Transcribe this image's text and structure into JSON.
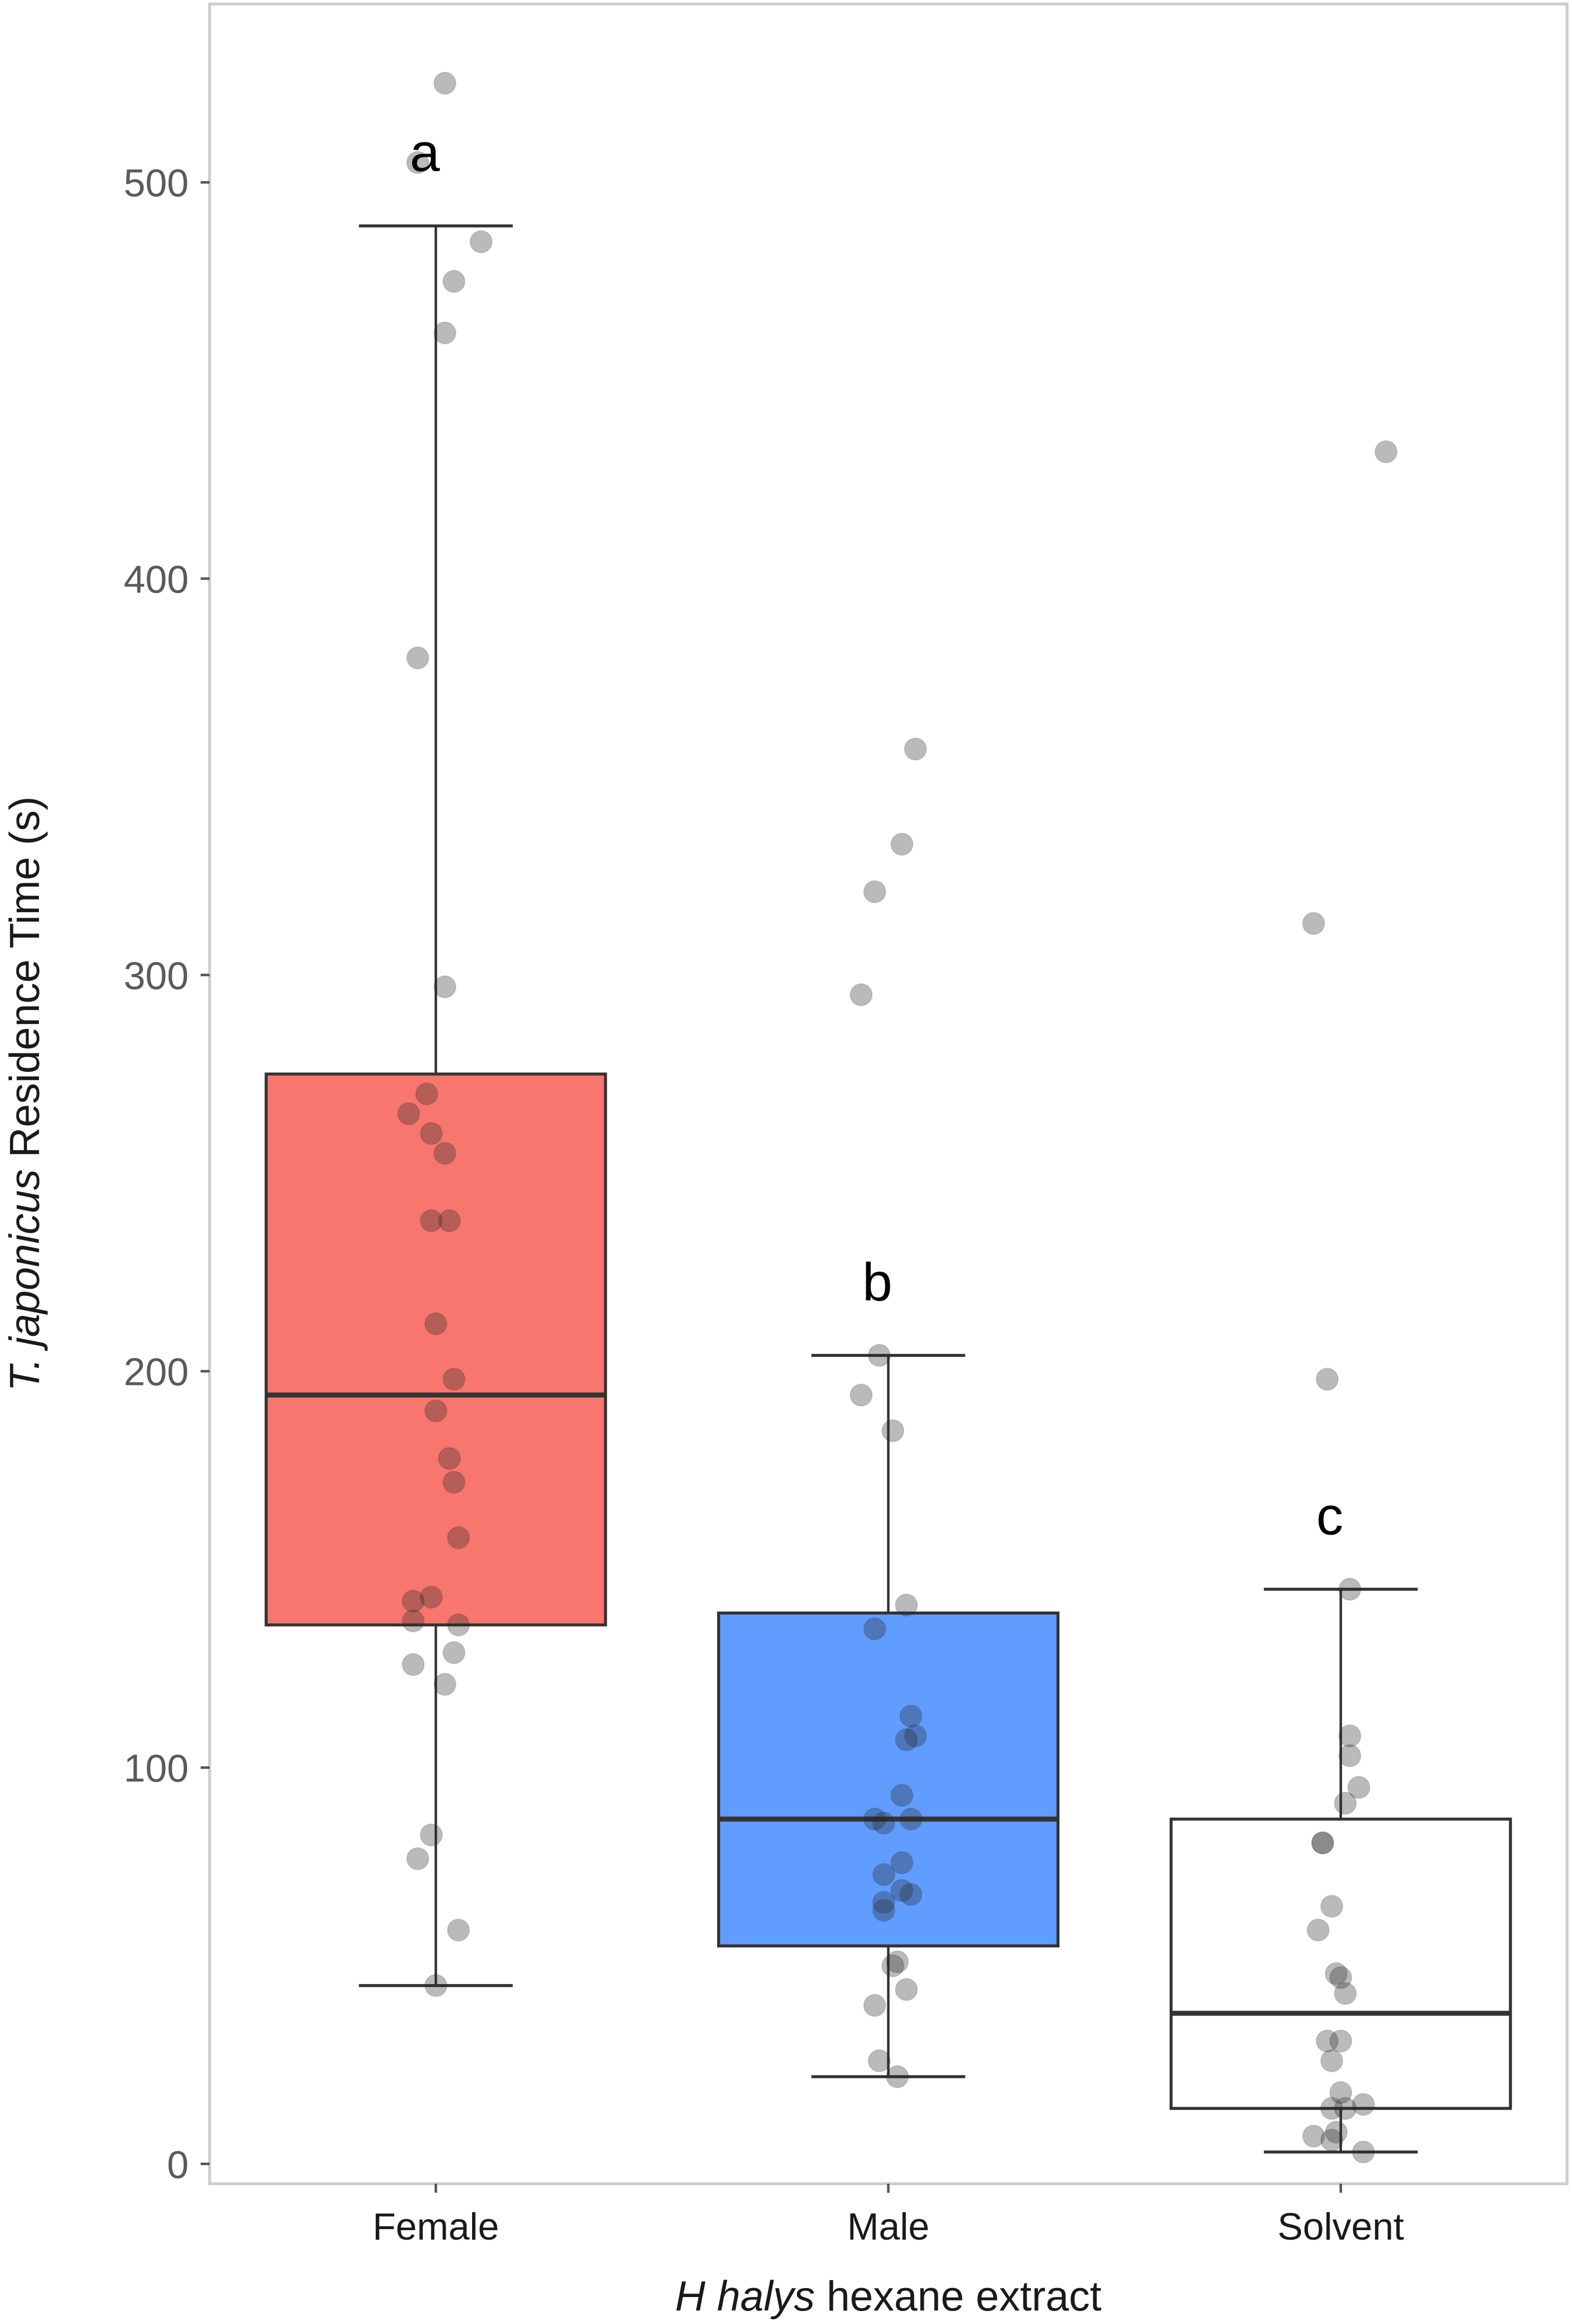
{
  "chart_data": {
    "type": "box",
    "title": "",
    "xlabel_italic": "H  halys",
    "xlabel_rest": " hexane extract",
    "ylabel_italic": "T. japonicus",
    "ylabel_rest": " Residence Time (s)",
    "ylim": [
      -5,
      545
    ],
    "yticks": [
      0,
      100,
      200,
      300,
      400,
      500
    ],
    "grid": false,
    "colors": {
      "Female": "#F8766D",
      "Male": "#619CFF",
      "Solvent": "#ffffff"
    },
    "groups": [
      {
        "name": "Female",
        "letter": "a",
        "box": {
          "whisker_low": 45,
          "q1": 136,
          "median": 194,
          "q3": 275,
          "whisker_high": 489
        },
        "points": [
          {
            "x": 0.02,
            "y": 525
          },
          {
            "x": -0.04,
            "y": 505
          },
          {
            "x": 0.1,
            "y": 485
          },
          {
            "x": 0.04,
            "y": 475
          },
          {
            "x": 0.02,
            "y": 462
          },
          {
            "x": -0.04,
            "y": 380
          },
          {
            "x": 0.02,
            "y": 297
          },
          {
            "x": -0.02,
            "y": 270
          },
          {
            "x": -0.06,
            "y": 265
          },
          {
            "x": -0.01,
            "y": 260
          },
          {
            "x": 0.02,
            "y": 255
          },
          {
            "x": -0.01,
            "y": 238
          },
          {
            "x": 0.03,
            "y": 238
          },
          {
            "x": 0.0,
            "y": 212
          },
          {
            "x": 0.04,
            "y": 198
          },
          {
            "x": 0.0,
            "y": 190
          },
          {
            "x": 0.03,
            "y": 178
          },
          {
            "x": 0.04,
            "y": 172
          },
          {
            "x": 0.05,
            "y": 158
          },
          {
            "x": -0.01,
            "y": 143
          },
          {
            "x": -0.05,
            "y": 142
          },
          {
            "x": -0.05,
            "y": 137
          },
          {
            "x": 0.05,
            "y": 136
          },
          {
            "x": 0.04,
            "y": 129
          },
          {
            "x": -0.05,
            "y": 126
          },
          {
            "x": 0.02,
            "y": 121
          },
          {
            "x": -0.01,
            "y": 83
          },
          {
            "x": -0.04,
            "y": 77
          },
          {
            "x": 0.05,
            "y": 59
          },
          {
            "x": 0.0,
            "y": 45
          }
        ]
      },
      {
        "name": "Male",
        "letter": "b",
        "box": {
          "whisker_low": 22,
          "q1": 55,
          "median": 87,
          "q3": 139,
          "whisker_high": 204
        },
        "points": [
          {
            "x": 0.06,
            "y": 357
          },
          {
            "x": 0.03,
            "y": 333
          },
          {
            "x": -0.03,
            "y": 321
          },
          {
            "x": -0.06,
            "y": 295
          },
          {
            "x": -0.02,
            "y": 204
          },
          {
            "x": -0.06,
            "y": 194
          },
          {
            "x": 0.01,
            "y": 185
          },
          {
            "x": 0.04,
            "y": 141
          },
          {
            "x": -0.03,
            "y": 135
          },
          {
            "x": 0.05,
            "y": 113
          },
          {
            "x": 0.06,
            "y": 108
          },
          {
            "x": 0.04,
            "y": 107
          },
          {
            "x": 0.03,
            "y": 93
          },
          {
            "x": 0.05,
            "y": 87
          },
          {
            "x": -0.03,
            "y": 87
          },
          {
            "x": -0.01,
            "y": 86
          },
          {
            "x": 0.03,
            "y": 76
          },
          {
            "x": -0.01,
            "y": 73
          },
          {
            "x": 0.05,
            "y": 68
          },
          {
            "x": 0.03,
            "y": 69
          },
          {
            "x": -0.01,
            "y": 66
          },
          {
            "x": -0.01,
            "y": 64
          },
          {
            "x": 0.02,
            "y": 51
          },
          {
            "x": 0.01,
            "y": 50
          },
          {
            "x": 0.04,
            "y": 44
          },
          {
            "x": -0.03,
            "y": 40
          },
          {
            "x": -0.02,
            "y": 26
          },
          {
            "x": 0.02,
            "y": 22
          }
        ]
      },
      {
        "name": "Solvent",
        "letter": "c",
        "box": {
          "whisker_low": 3,
          "q1": 14,
          "median": 38,
          "q3": 87,
          "whisker_high": 145
        },
        "points": [
          {
            "x": 0.1,
            "y": 432
          },
          {
            "x": -0.06,
            "y": 313
          },
          {
            "x": -0.03,
            "y": 198
          },
          {
            "x": 0.02,
            "y": 145
          },
          {
            "x": 0.02,
            "y": 108
          },
          {
            "x": 0.02,
            "y": 103
          },
          {
            "x": 0.04,
            "y": 95
          },
          {
            "x": 0.01,
            "y": 91
          },
          {
            "x": -0.04,
            "y": 81
          },
          {
            "x": -0.04,
            "y": 81
          },
          {
            "x": -0.02,
            "y": 65
          },
          {
            "x": -0.05,
            "y": 59
          },
          {
            "x": -0.01,
            "y": 48
          },
          {
            "x": 0.0,
            "y": 47
          },
          {
            "x": 0.01,
            "y": 43
          },
          {
            "x": -0.03,
            "y": 31
          },
          {
            "x": 0.0,
            "y": 31
          },
          {
            "x": -0.02,
            "y": 26
          },
          {
            "x": 0.0,
            "y": 18
          },
          {
            "x": 0.05,
            "y": 15
          },
          {
            "x": -0.02,
            "y": 14
          },
          {
            "x": 0.01,
            "y": 14
          },
          {
            "x": -0.01,
            "y": 8
          },
          {
            "x": -0.06,
            "y": 7
          },
          {
            "x": -0.02,
            "y": 6
          },
          {
            "x": 0.05,
            "y": 3
          }
        ]
      }
    ]
  }
}
